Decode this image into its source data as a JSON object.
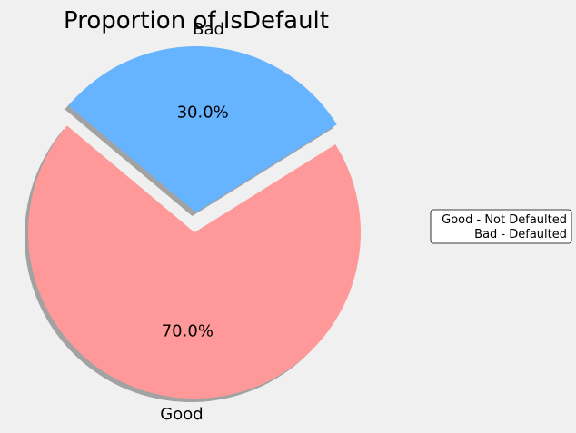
{
  "chart_data": {
    "type": "pie",
    "title": "Proportion of IsDefault",
    "categories": [
      "Good",
      "Bad"
    ],
    "values": [
      70.0,
      30.0
    ],
    "percent_labels": [
      "70.0%",
      "30.0%"
    ],
    "colors": [
      "#ff9999",
      "#66b3ff"
    ],
    "explode": [
      0,
      1
    ],
    "shadow": true,
    "legend": {
      "placement": "right",
      "lines": [
        "Good - Not Defaulted",
        "Bad - Defaulted"
      ]
    }
  }
}
